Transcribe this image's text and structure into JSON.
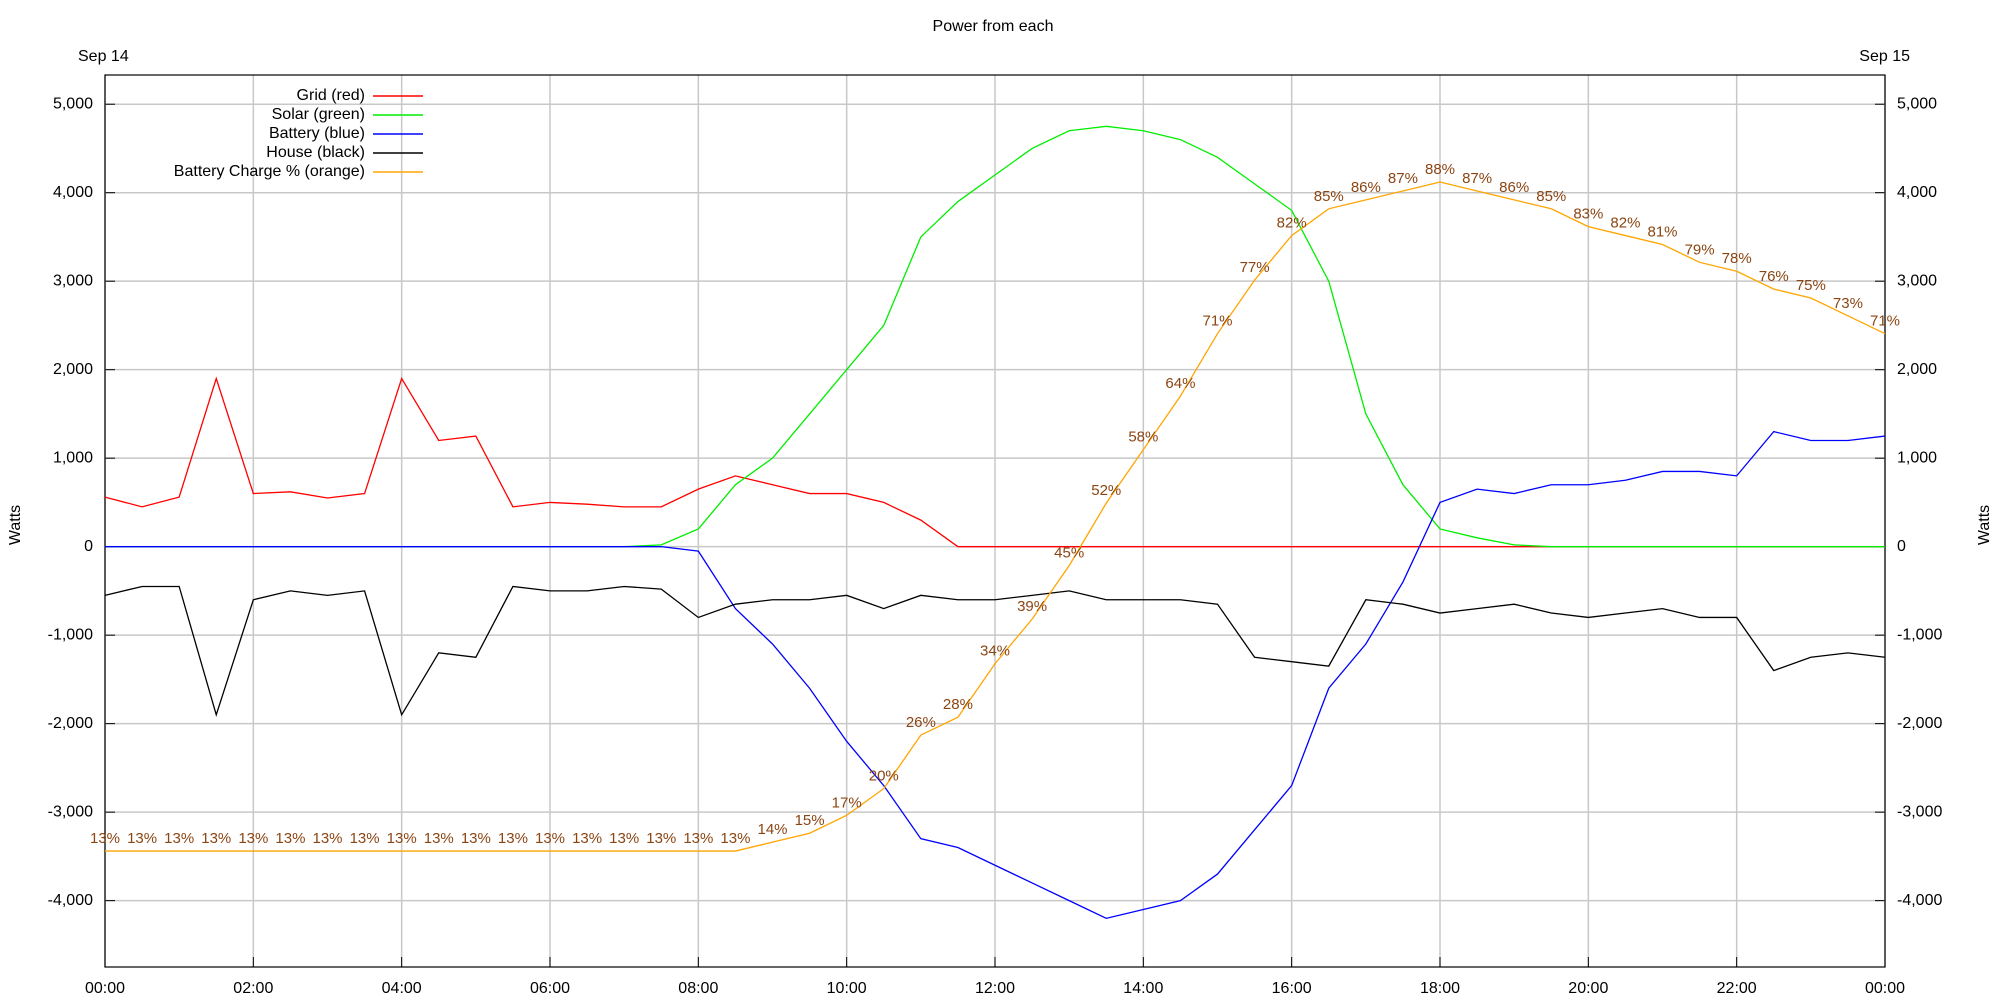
{
  "chart_data": {
    "type": "line",
    "title": "Power from each",
    "date_left": "Sep 14",
    "date_right": "Sep 15",
    "y_label": "Watts",
    "grid": true,
    "legend": "top-left",
    "xlim": [
      0,
      24
    ],
    "xticks": [
      {
        "value": 0,
        "label": "00:00"
      },
      {
        "value": 2,
        "label": "02:00"
      },
      {
        "value": 4,
        "label": "04:00"
      },
      {
        "value": 6,
        "label": "06:00"
      },
      {
        "value": 8,
        "label": "08:00"
      },
      {
        "value": 10,
        "label": "10:00"
      },
      {
        "value": 12,
        "label": "12:00"
      },
      {
        "value": 14,
        "label": "14:00"
      },
      {
        "value": 16,
        "label": "16:00"
      },
      {
        "value": 18,
        "label": "18:00"
      },
      {
        "value": 20,
        "label": "20:00"
      },
      {
        "value": 22,
        "label": "22:00"
      },
      {
        "value": 24,
        "label": "00:00"
      }
    ],
    "ylim": [
      -4750,
      5330
    ],
    "yticks": [
      {
        "value": -4000,
        "label": "-4,000"
      },
      {
        "value": -3000,
        "label": "-3,000"
      },
      {
        "value": -2000,
        "label": "-2,000"
      },
      {
        "value": -1000,
        "label": "-1,000"
      },
      0,
      {
        "value": 1000,
        "label": "1,000"
      },
      {
        "value": 2000,
        "label": "2,000"
      },
      {
        "value": 3000,
        "label": "3,000"
      },
      {
        "value": 4000,
        "label": "4,000"
      },
      {
        "value": 5000,
        "label": "5,000"
      }
    ],
    "y2lim": [
      0,
      100
    ],
    "x": [
      0,
      0.5,
      1,
      1.5,
      2,
      2.5,
      3,
      3.5,
      4,
      4.5,
      5,
      5.5,
      6,
      6.5,
      7,
      7.5,
      8,
      8.5,
      9,
      9.5,
      10,
      10.5,
      11,
      11.5,
      12,
      12.5,
      13,
      13.5,
      14,
      14.5,
      15,
      15.5,
      16,
      16.5,
      17,
      17.5,
      18,
      18.5,
      19,
      19.5,
      20,
      20.5,
      21,
      21.5,
      22,
      22.5,
      23,
      23.5,
      24
    ],
    "series": [
      {
        "name": "Grid (red)",
        "color": "#ff0000",
        "values": [
          560,
          450,
          560,
          1900,
          600,
          620,
          550,
          600,
          1900,
          1200,
          1250,
          450,
          500,
          480,
          450,
          450,
          650,
          800,
          700,
          600,
          600,
          500,
          300,
          0,
          0,
          0,
          0,
          0,
          0,
          0,
          0,
          0,
          0,
          0,
          0,
          0,
          0,
          0,
          0,
          0,
          0,
          0,
          0,
          0,
          0,
          0,
          0,
          0,
          0
        ]
      },
      {
        "name": "Solar (green)",
        "color": "#00ee00",
        "values": [
          0,
          0,
          0,
          0,
          0,
          0,
          0,
          0,
          0,
          0,
          0,
          0,
          0,
          0,
          0,
          20,
          200,
          700,
          1000,
          1500,
          2000,
          2500,
          3500,
          3900,
          4200,
          4500,
          4700,
          4750,
          4700,
          4600,
          4400,
          4100,
          3800,
          3000,
          1500,
          700,
          200,
          100,
          20,
          0,
          0,
          0,
          0,
          0,
          0,
          0,
          0,
          0,
          0
        ]
      },
      {
        "name": "Battery (blue)",
        "color": "#0000ff",
        "values": [
          0,
          0,
          0,
          0,
          0,
          0,
          0,
          0,
          0,
          0,
          0,
          0,
          0,
          0,
          0,
          0,
          -50,
          -700,
          -1100,
          -1600,
          -2200,
          -2700,
          -3300,
          -3400,
          -3600,
          -3800,
          -4000,
          -4200,
          -4100,
          -4000,
          -3700,
          -3200,
          -2700,
          -1600,
          -1100,
          -400,
          500,
          650,
          600,
          700,
          700,
          750,
          850,
          850,
          800,
          1300,
          1200,
          1200,
          1250
        ]
      },
      {
        "name": "House (black)",
        "color": "#000000",
        "values": [
          -550,
          -450,
          -450,
          -1900,
          -600,
          -500,
          -550,
          -500,
          -1900,
          -1200,
          -1250,
          -450,
          -500,
          -500,
          -450,
          -480,
          -800,
          -650,
          -600,
          -600,
          -550,
          -700,
          -550,
          -600,
          -600,
          -550,
          -500,
          -600,
          -600,
          -600,
          -650,
          -1250,
          -1300,
          -1350,
          -600,
          -650,
          -750,
          -700,
          -650,
          -750,
          -800,
          -750,
          -700,
          -800,
          -800,
          -1400,
          -1250,
          -1200,
          -1250
        ]
      },
      {
        "name": "Battery Charge % (orange)",
        "color": "#ffa500",
        "axis": "y2",
        "label_color": "#8b4513",
        "values": [
          13,
          13,
          13,
          13,
          13,
          13,
          13,
          13,
          13,
          13,
          13,
          13,
          13,
          13,
          13,
          13,
          13,
          13,
          14,
          15,
          17,
          20,
          26,
          28,
          34,
          39,
          45,
          52,
          58,
          64,
          71,
          77,
          82,
          85,
          86,
          87,
          88,
          87,
          86,
          85,
          83,
          82,
          81,
          79,
          78,
          76,
          75,
          73,
          71
        ],
        "value_labels": [
          "13%",
          "13%",
          "13%",
          "13%",
          "13%",
          "13%",
          "13%",
          "13%",
          "13%",
          "13%",
          "13%",
          "13%",
          "13%",
          "13%",
          "13%",
          "13%",
          "13%",
          "13%",
          "14%",
          "15%",
          "17%",
          "20%",
          "26%",
          "28%",
          "34%",
          "39%",
          "45%",
          "52%",
          "58%",
          "64%",
          "71%",
          "77%",
          "82%",
          "85%",
          "86%",
          "87%",
          "88%",
          "87%",
          "86%",
          "85%",
          "83%",
          "82%",
          "81%",
          "79%",
          "78%",
          "76%",
          "75%",
          "73%",
          "71%"
        ]
      }
    ]
  }
}
